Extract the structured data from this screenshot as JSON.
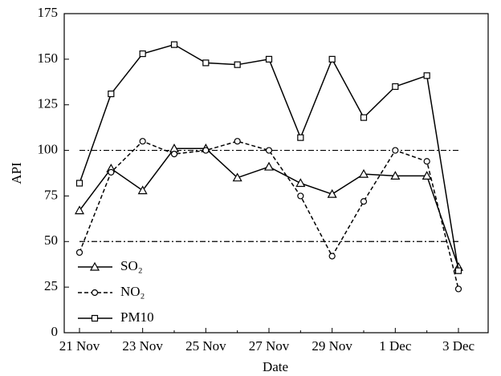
{
  "chart_data": {
    "type": "line",
    "xlabel": "Date",
    "ylabel": "API",
    "categories": [
      "21 Nov",
      null,
      "23 Nov",
      null,
      "25 Nov",
      null,
      "27 Nov",
      null,
      "29 Nov",
      null,
      "1 Dec",
      null,
      "3 Dec"
    ],
    "series": [
      {
        "name": "SO₂",
        "color": "#000000",
        "marker": "triangle",
        "dash": "solid",
        "values": [
          67,
          90,
          78,
          101,
          101,
          85,
          91,
          82,
          76,
          87,
          86,
          86,
          36
        ]
      },
      {
        "name": "NO₂",
        "color": "#000000",
        "marker": "circle",
        "dash": "dashed",
        "values": [
          44,
          88,
          105,
          98,
          100,
          105,
          100,
          75,
          42,
          72,
          100,
          94,
          24
        ]
      },
      {
        "name": "PM10",
        "color": "#000000",
        "marker": "square",
        "dash": "solid",
        "values": [
          82,
          131,
          153,
          158,
          148,
          147,
          150,
          107,
          150,
          118,
          135,
          141,
          34
        ]
      }
    ],
    "reference_lines": [
      100,
      50
    ],
    "ylim": [
      0,
      175
    ],
    "yticks": [
      0,
      25,
      50,
      75,
      100,
      125,
      150,
      175
    ],
    "grid": false,
    "legend": "lower left"
  }
}
